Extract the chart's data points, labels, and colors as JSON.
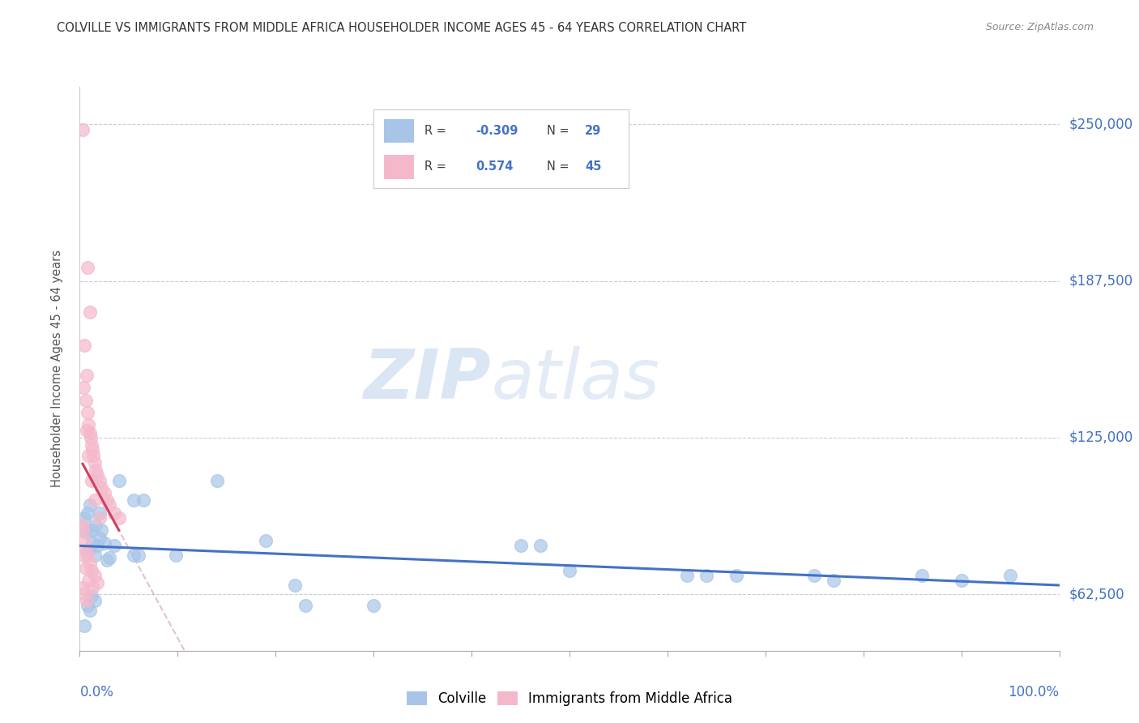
{
  "title": "COLVILLE VS IMMIGRANTS FROM MIDDLE AFRICA HOUSEHOLDER INCOME AGES 45 - 64 YEARS CORRELATION CHART",
  "source": "Source: ZipAtlas.com",
  "ylabel": "Householder Income Ages 45 - 64 years",
  "yticks": [
    62500,
    125000,
    187500,
    250000
  ],
  "ytick_labels": [
    "$62,500",
    "$125,000",
    "$187,500",
    "$250,000"
  ],
  "watermark_zip": "ZIP",
  "watermark_atlas": "atlas",
  "legend_blue_label": "Colville",
  "legend_pink_label": "Immigrants from Middle Africa",
  "blue_color": "#a8c5e8",
  "pink_color": "#f5b8cb",
  "blue_line_color": "#4472c4",
  "pink_line_color": "#d04060",
  "pink_dash_color": "#d8a8b8",
  "title_color": "#333333",
  "source_color": "#888888",
  "axis_label_color": "#4472c4",
  "blue_points": [
    [
      0.005,
      93000
    ],
    [
      0.007,
      87000
    ],
    [
      0.008,
      95000
    ],
    [
      0.009,
      80000
    ],
    [
      0.01,
      98000
    ],
    [
      0.012,
      88000
    ],
    [
      0.013,
      83000
    ],
    [
      0.015,
      78000
    ],
    [
      0.016,
      90000
    ],
    [
      0.018,
      82000
    ],
    [
      0.02,
      95000
    ],
    [
      0.022,
      88000
    ],
    [
      0.025,
      83000
    ],
    [
      0.028,
      76000
    ],
    [
      0.03,
      77000
    ],
    [
      0.04,
      108000
    ],
    [
      0.055,
      78000
    ],
    [
      0.06,
      78000
    ],
    [
      0.14,
      108000
    ],
    [
      0.19,
      84000
    ],
    [
      0.45,
      82000
    ],
    [
      0.47,
      82000
    ],
    [
      0.5,
      72000
    ],
    [
      0.62,
      70000
    ],
    [
      0.64,
      70000
    ],
    [
      0.67,
      70000
    ],
    [
      0.75,
      70000
    ],
    [
      0.77,
      68000
    ],
    [
      0.86,
      70000
    ],
    [
      0.9,
      68000
    ],
    [
      0.95,
      70000
    ],
    [
      0.22,
      66000
    ],
    [
      0.23,
      58000
    ],
    [
      0.3,
      58000
    ],
    [
      0.012,
      62000
    ],
    [
      0.015,
      60000
    ],
    [
      0.008,
      58000
    ],
    [
      0.01,
      56000
    ],
    [
      0.005,
      50000
    ],
    [
      0.02,
      85000
    ],
    [
      0.035,
      82000
    ],
    [
      0.055,
      100000
    ],
    [
      0.065,
      100000
    ],
    [
      0.098,
      78000
    ]
  ],
  "pink_points": [
    [
      0.003,
      248000
    ],
    [
      0.008,
      193000
    ],
    [
      0.01,
      175000
    ],
    [
      0.005,
      162000
    ],
    [
      0.007,
      150000
    ],
    [
      0.004,
      145000
    ],
    [
      0.006,
      140000
    ],
    [
      0.008,
      135000
    ],
    [
      0.009,
      130000
    ],
    [
      0.01,
      127000
    ],
    [
      0.011,
      125000
    ],
    [
      0.012,
      122000
    ],
    [
      0.013,
      120000
    ],
    [
      0.014,
      118000
    ],
    [
      0.015,
      115000
    ],
    [
      0.016,
      112000
    ],
    [
      0.018,
      110000
    ],
    [
      0.02,
      108000
    ],
    [
      0.022,
      105000
    ],
    [
      0.025,
      103000
    ],
    [
      0.028,
      100000
    ],
    [
      0.03,
      98000
    ],
    [
      0.035,
      95000
    ],
    [
      0.04,
      93000
    ],
    [
      0.007,
      128000
    ],
    [
      0.009,
      118000
    ],
    [
      0.012,
      108000
    ],
    [
      0.015,
      100000
    ],
    [
      0.02,
      93000
    ],
    [
      0.002,
      90000
    ],
    [
      0.003,
      88000
    ],
    [
      0.005,
      84000
    ],
    [
      0.006,
      80000
    ],
    [
      0.008,
      78000
    ],
    [
      0.01,
      75000
    ],
    [
      0.012,
      72000
    ],
    [
      0.015,
      70000
    ],
    [
      0.018,
      67000
    ],
    [
      0.003,
      65000
    ],
    [
      0.005,
      63000
    ],
    [
      0.007,
      60000
    ],
    [
      0.004,
      78000
    ],
    [
      0.006,
      73000
    ],
    [
      0.009,
      68000
    ],
    [
      0.013,
      65000
    ]
  ],
  "xlim": [
    0.0,
    1.0
  ],
  "ylim": [
    40000,
    265000
  ],
  "xticks": [
    0.0,
    0.1,
    0.2,
    0.3,
    0.4,
    0.5,
    0.6,
    0.7,
    0.8,
    0.9,
    1.0
  ]
}
